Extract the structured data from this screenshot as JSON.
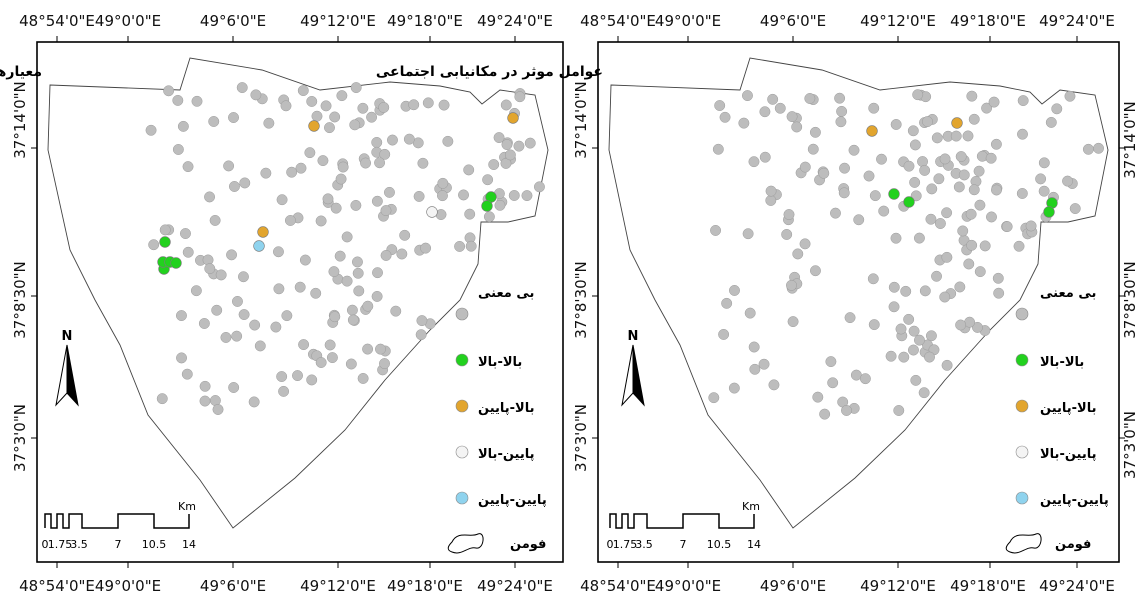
{
  "maps": [
    {
      "title": "معیارهای مکانیابی",
      "x_ticks": [
        "48°54'0\"E",
        "49°0'0\"E",
        "49°6'0\"E",
        "49°12'0\"E",
        "49°18'0\"E",
        "49°24'0\"E"
      ],
      "y_ticks": [
        "37°14'0\"N",
        "37°8'30\"N",
        "37°3'0\"N"
      ]
    },
    {
      "title": "عوامل موثر در مکانیابی اجتماعی",
      "x_ticks": [
        "48°54'0\"E",
        "49°0'0\"E",
        "49°6'0\"E",
        "49°12'0\"E",
        "49°18'0\"E",
        "49°24'0\"E"
      ],
      "y_ticks": [
        "37°14'0\"N",
        "37°8'30\"N",
        "37°3'0\"N"
      ]
    }
  ],
  "legend": {
    "items": [
      {
        "label": "بی معنی",
        "color": "#bdbdbd"
      },
      {
        "label": "بالا-بالا",
        "color": "#22d11e"
      },
      {
        "label": "بالا-پایین",
        "color": "#e2a52e"
      },
      {
        "label": "پایین-بالا",
        "color": "#f4f4f4"
      },
      {
        "label": "پایین-پایین",
        "color": "#8fd3ee"
      }
    ],
    "boundary_label": "فومن"
  },
  "north_label": "N",
  "scalebar": {
    "unit": "Km",
    "labels": [
      "0",
      "1.75",
      "3.5",
      "7",
      "10.5",
      "14"
    ]
  }
}
